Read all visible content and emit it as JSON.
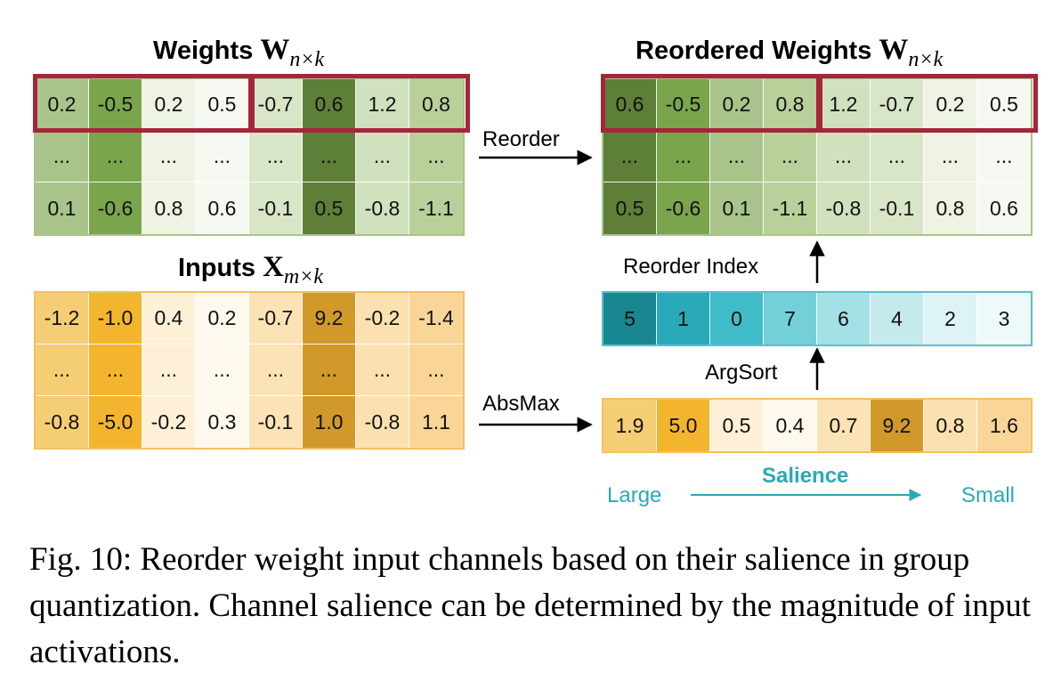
{
  "weights": {
    "title": "Weights",
    "symbol": "W",
    "subscript": "n×k",
    "rows": [
      [
        "0.2",
        "-0.5",
        "0.2",
        "0.5",
        "-0.7",
        "0.6",
        "1.2",
        "0.8"
      ],
      [
        "...",
        "...",
        "...",
        "...",
        "...",
        "...",
        "...",
        "..."
      ],
      [
        "0.1",
        "-0.6",
        "0.8",
        "0.6",
        "-0.1",
        "0.5",
        "-0.8",
        "-1.1"
      ]
    ],
    "colors": [
      "#a8c48a",
      "#7ba54c",
      "#eef3e4",
      "#f6f9f1",
      "#d8e6c7",
      "#5e7f37",
      "#d1e1bd",
      "#b9d09a"
    ]
  },
  "inputs": {
    "title": "Inputs",
    "symbol": "X",
    "subscript": "m×k",
    "rows": [
      [
        "-1.2",
        "-1.0",
        "0.4",
        "0.2",
        "-0.7",
        "9.2",
        "-0.2",
        "-1.4"
      ],
      [
        "...",
        "...",
        "...",
        "...",
        "...",
        "...",
        "...",
        "..."
      ],
      [
        "-0.8",
        "-5.0",
        "-0.2",
        "0.3",
        "-0.1",
        "1.0",
        "-0.8",
        "1.1"
      ]
    ],
    "colors": [
      "#f5cd74",
      "#f4b52e",
      "#fdf0d6",
      "#fef8ed",
      "#fbe3b6",
      "#d1992a",
      "#fbe1b0",
      "#f9d698"
    ]
  },
  "reordered": {
    "title": "Reordered Weights",
    "symbol": "W",
    "subscript": "n×k",
    "rows": [
      [
        "0.6",
        "-0.5",
        "0.2",
        "0.8",
        "1.2",
        "-0.7",
        "0.2",
        "0.5"
      ],
      [
        "...",
        "...",
        "...",
        "...",
        "...",
        "...",
        "...",
        "..."
      ],
      [
        "0.5",
        "-0.6",
        "0.1",
        "-1.1",
        "-0.8",
        "-0.1",
        "0.8",
        "0.6"
      ]
    ],
    "colors": [
      "#5e7f37",
      "#7ba54c",
      "#a8c48a",
      "#b9d09a",
      "#d1e1bd",
      "#d8e6c7",
      "#eef3e4",
      "#f6f9f1"
    ]
  },
  "reorder_index": {
    "values": [
      "5",
      "1",
      "0",
      "7",
      "6",
      "4",
      "2",
      "3"
    ],
    "colors": [
      "#19878f",
      "#2aaab8",
      "#3fbcc8",
      "#73cfd8",
      "#a4e0e5",
      "#c4eaed",
      "#ddf3f5",
      "#eef9fa"
    ]
  },
  "absmax": {
    "values": [
      "1.9",
      "5.0",
      "0.5",
      "0.4",
      "0.7",
      "9.2",
      "0.8",
      "1.6"
    ],
    "colors": [
      "#f5cd74",
      "#f4b52e",
      "#fdf0d6",
      "#fef8ed",
      "#fbe3b6",
      "#d1992a",
      "#fbe1b0",
      "#f9d698"
    ]
  },
  "labels": {
    "reorder": "Reorder",
    "absmax": "AbsMax",
    "reorder_index": "Reorder Index",
    "argsort": "ArgSort",
    "salience": "Salience",
    "large": "Large",
    "small": "Small"
  },
  "colors": {
    "group_box": "#a8243a",
    "teal_text": "#2aaab8"
  },
  "caption": "Fig. 10: Reorder weight input channels based on their salience in group quantization. Channel salience can be determined by the magnitude of input activations."
}
